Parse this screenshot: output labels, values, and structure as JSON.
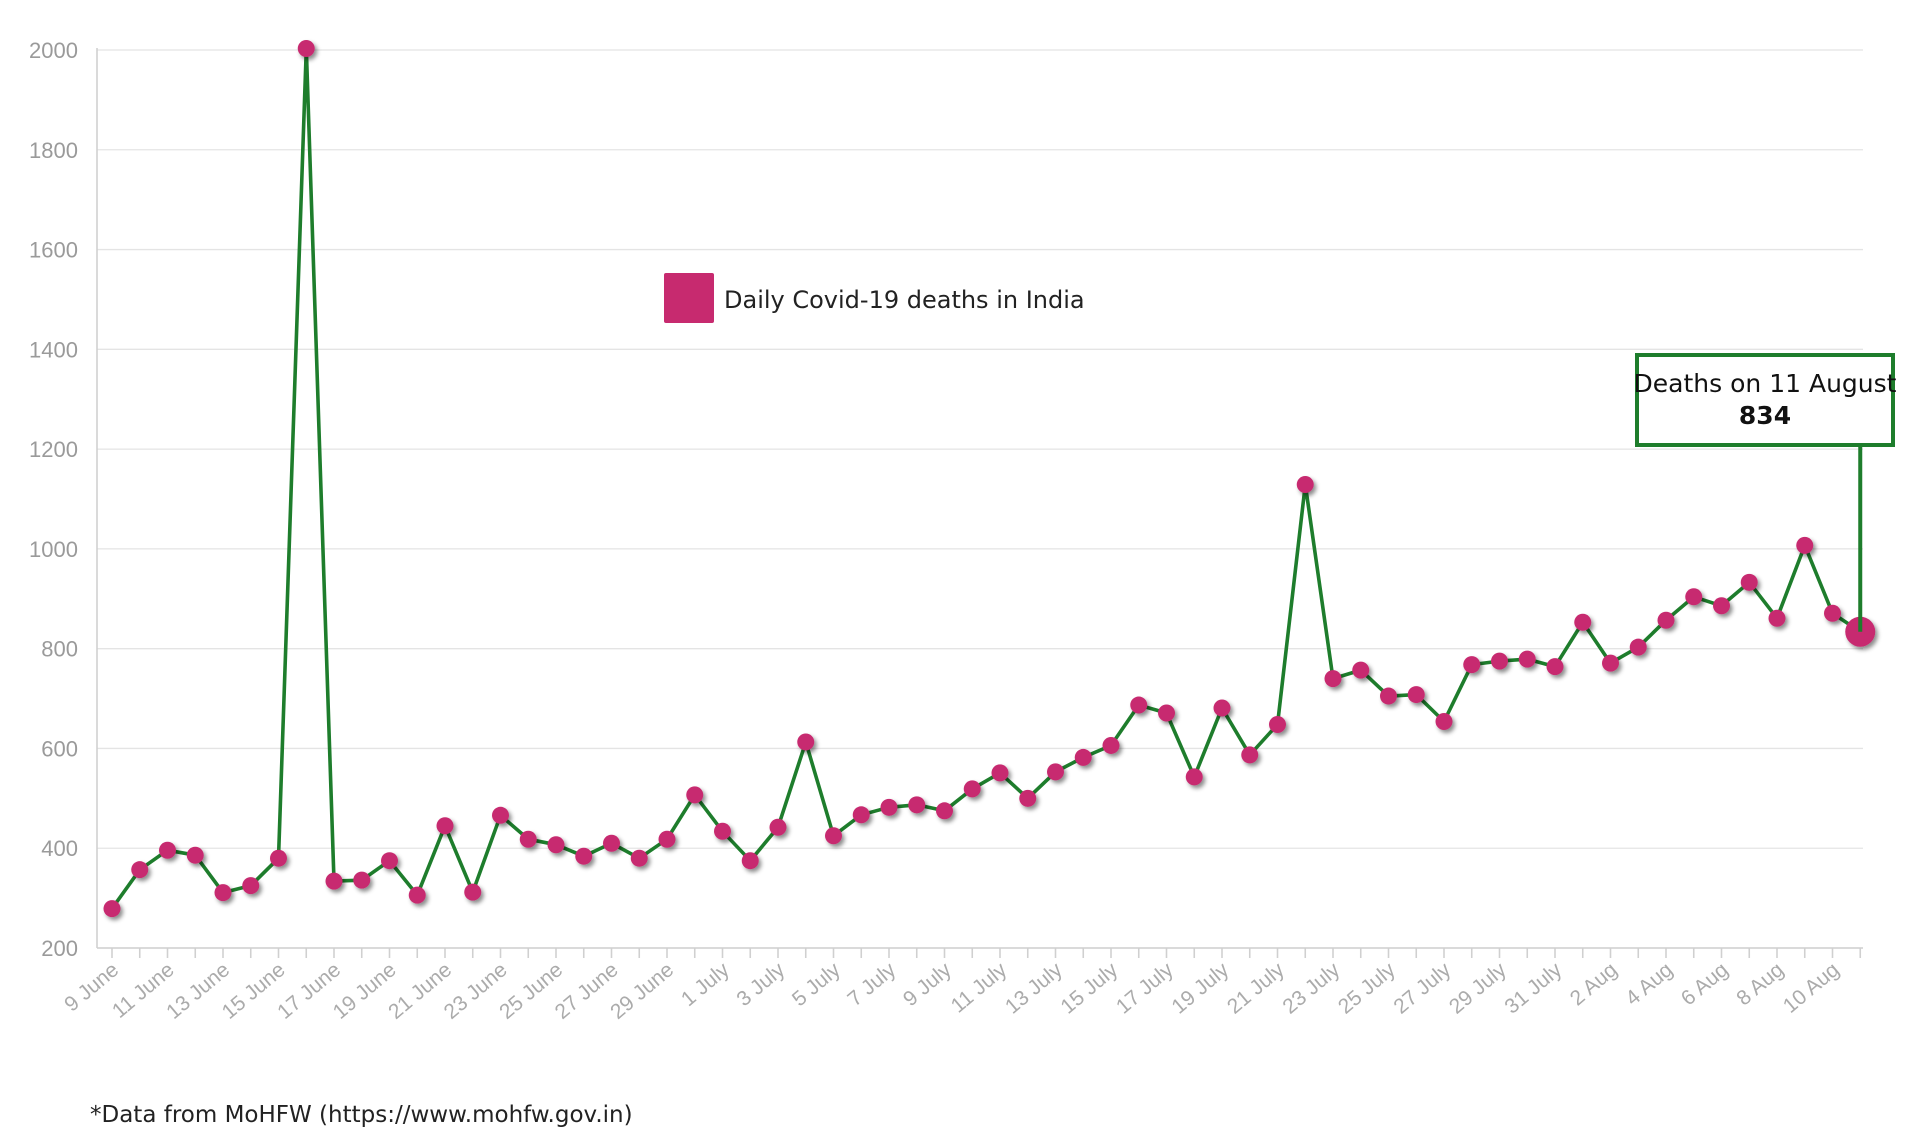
{
  "colors": {
    "line": "#1e7d2c",
    "marker": "#c72a6f",
    "grid": "#e4e4e4",
    "tick_text": "#a5a5a5",
    "annotation_border": "#1e7d2c"
  },
  "chart_data": {
    "type": "line",
    "title": "",
    "xlabel": "",
    "ylabel": "",
    "ylim": [
      200,
      2000
    ],
    "yticks": [
      200,
      400,
      600,
      800,
      1000,
      1200,
      1400,
      1600,
      1800,
      2000
    ],
    "grid": true,
    "legend": {
      "position": "upper-center",
      "entries": [
        "Daily Covid-19 deaths in India"
      ]
    },
    "x": [
      "9 June",
      "10 June",
      "11 June",
      "12 June",
      "13 June",
      "14 June",
      "15 June",
      "16 June",
      "17 June",
      "18 June",
      "19 June",
      "20 June",
      "21 June",
      "22 June",
      "23 June",
      "24 June",
      "25 June",
      "26 June",
      "27 June",
      "28 June",
      "29 June",
      "30 June",
      "1 July",
      "2 July",
      "3 July",
      "4 July",
      "5 July",
      "6 July",
      "7 July",
      "8 July",
      "9 July",
      "10 July",
      "11 July",
      "12 July",
      "13 July",
      "14 July",
      "15 July",
      "16 July",
      "17 July",
      "18 July",
      "19 July",
      "20 July",
      "21 July",
      "22 July",
      "23 July",
      "24 July",
      "25 July",
      "26 July",
      "27 July",
      "28 July",
      "29 July",
      "30 July",
      "31 July",
      "1 Aug",
      "2 Aug",
      "3 Aug",
      "4 Aug",
      "5 Aug",
      "6 Aug",
      "7 Aug",
      "8 Aug",
      "9 Aug",
      "10 Aug",
      "11 Aug"
    ],
    "x_tick_labels": [
      "9 June",
      "11 June",
      "13 June",
      "15 June",
      "17 June",
      "19 June",
      "21 June",
      "23 June",
      "25 June",
      "27 June",
      "29 June",
      "1 July",
      "3 July",
      "5 July",
      "7 July",
      "9 July",
      "11 July",
      "13 July",
      "15 July",
      "17 July",
      "19 July",
      "21 July",
      "23 July",
      "25 July",
      "27 July",
      "29 July",
      "31 July",
      "2 Aug",
      "4 Aug",
      "6 Aug",
      "8 Aug",
      "10 Aug"
    ],
    "series": [
      {
        "name": "Daily Covid-19 deaths in India",
        "values": [
          279,
          357,
          396,
          386,
          311,
          325,
          380,
          2003,
          334,
          336,
          375,
          306,
          445,
          312,
          466,
          418,
          407,
          384,
          410,
          380,
          418,
          507,
          434,
          375,
          442,
          613,
          425,
          467,
          482,
          487,
          475,
          519,
          551,
          500,
          553,
          582,
          606,
          687,
          671,
          543,
          681,
          587,
          648,
          1129,
          740,
          757,
          705,
          708,
          654,
          768,
          775,
          779,
          764,
          853,
          771,
          803,
          857,
          904,
          886,
          933,
          861,
          1007,
          871,
          834
        ]
      }
    ],
    "annotation": {
      "title": "Deaths on 11 August",
      "value": "834",
      "x": "11 Aug"
    },
    "footnote": "*Data from MoHFW (https://www.mohfw.gov.in)"
  }
}
